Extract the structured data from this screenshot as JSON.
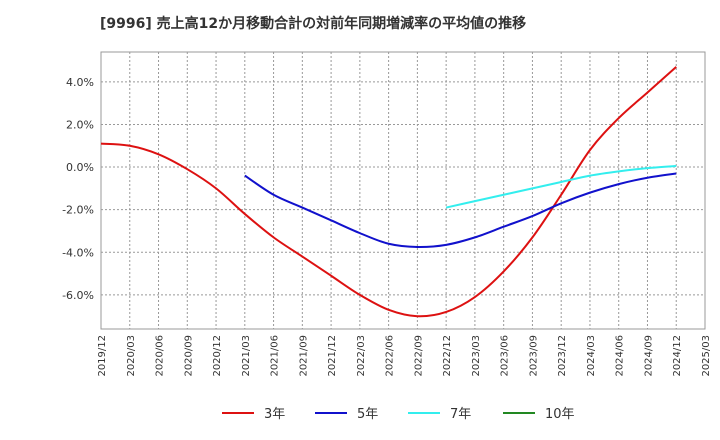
{
  "chart_data": {
    "type": "line",
    "title": "[9996]  売上高12か月移動合計の対前年同期増減率の平均値の推移",
    "y_axis": {
      "ylim": [
        -7.6,
        5.4
      ],
      "ticks": [
        4,
        2,
        0,
        -2,
        -4,
        -6
      ],
      "tick_labels": [
        "4.0%",
        "2.0%",
        "0.0%",
        "-2.0%",
        "-4.0%",
        "-6.0%"
      ]
    },
    "x_axis": {
      "range": [
        "2019/12",
        "2025/03"
      ],
      "tick_labels": [
        "2019/12",
        "2020/03",
        "2020/06",
        "2020/09",
        "2020/12",
        "2021/03",
        "2021/06",
        "2021/09",
        "2021/12",
        "2022/03",
        "2022/06",
        "2022/09",
        "2022/12",
        "2023/03",
        "2023/06",
        "2023/09",
        "2023/12",
        "2024/03",
        "2024/06",
        "2024/09",
        "2024/12",
        "2025/03"
      ]
    },
    "grid": true,
    "legend_position": "bottom",
    "series": [
      {
        "name": "3年",
        "color": "#dd1111",
        "x": [
          "2019/12",
          "2020/03",
          "2020/06",
          "2020/09",
          "2020/12",
          "2021/03",
          "2021/06",
          "2021/09",
          "2021/12",
          "2022/03",
          "2022/06",
          "2022/09",
          "2022/12",
          "2023/03",
          "2023/06",
          "2023/09",
          "2023/12",
          "2024/03",
          "2024/06",
          "2024/09",
          "2024/12"
        ],
        "values": [
          1.1,
          1.0,
          0.6,
          -0.1,
          -1.0,
          -2.2,
          -3.3,
          -4.2,
          -5.1,
          -6.0,
          -6.7,
          -7.0,
          -6.8,
          -6.1,
          -4.9,
          -3.3,
          -1.3,
          0.8,
          2.3,
          3.5,
          4.7
        ]
      },
      {
        "name": "5年",
        "color": "#1111cc",
        "x": [
          "2021/03",
          "2021/06",
          "2021/09",
          "2021/12",
          "2022/03",
          "2022/06",
          "2022/09",
          "2022/12",
          "2023/03",
          "2023/06",
          "2023/09",
          "2023/12",
          "2024/03",
          "2024/06",
          "2024/09",
          "2024/12"
        ],
        "values": [
          -0.4,
          -1.3,
          -1.9,
          -2.5,
          -3.1,
          -3.6,
          -3.75,
          -3.65,
          -3.3,
          -2.8,
          -2.3,
          -1.7,
          -1.2,
          -0.8,
          -0.5,
          -0.3
        ]
      },
      {
        "name": "7年",
        "color": "#33eeee",
        "x": [
          "2022/12",
          "2023/03",
          "2023/06",
          "2023/09",
          "2023/12",
          "2024/03",
          "2024/06",
          "2024/09",
          "2024/12"
        ],
        "values": [
          -1.9,
          -1.6,
          -1.3,
          -1.0,
          -0.7,
          -0.4,
          -0.2,
          -0.05,
          0.05
        ]
      },
      {
        "name": "10年",
        "color": "#228822",
        "x": [],
        "values": []
      }
    ]
  }
}
